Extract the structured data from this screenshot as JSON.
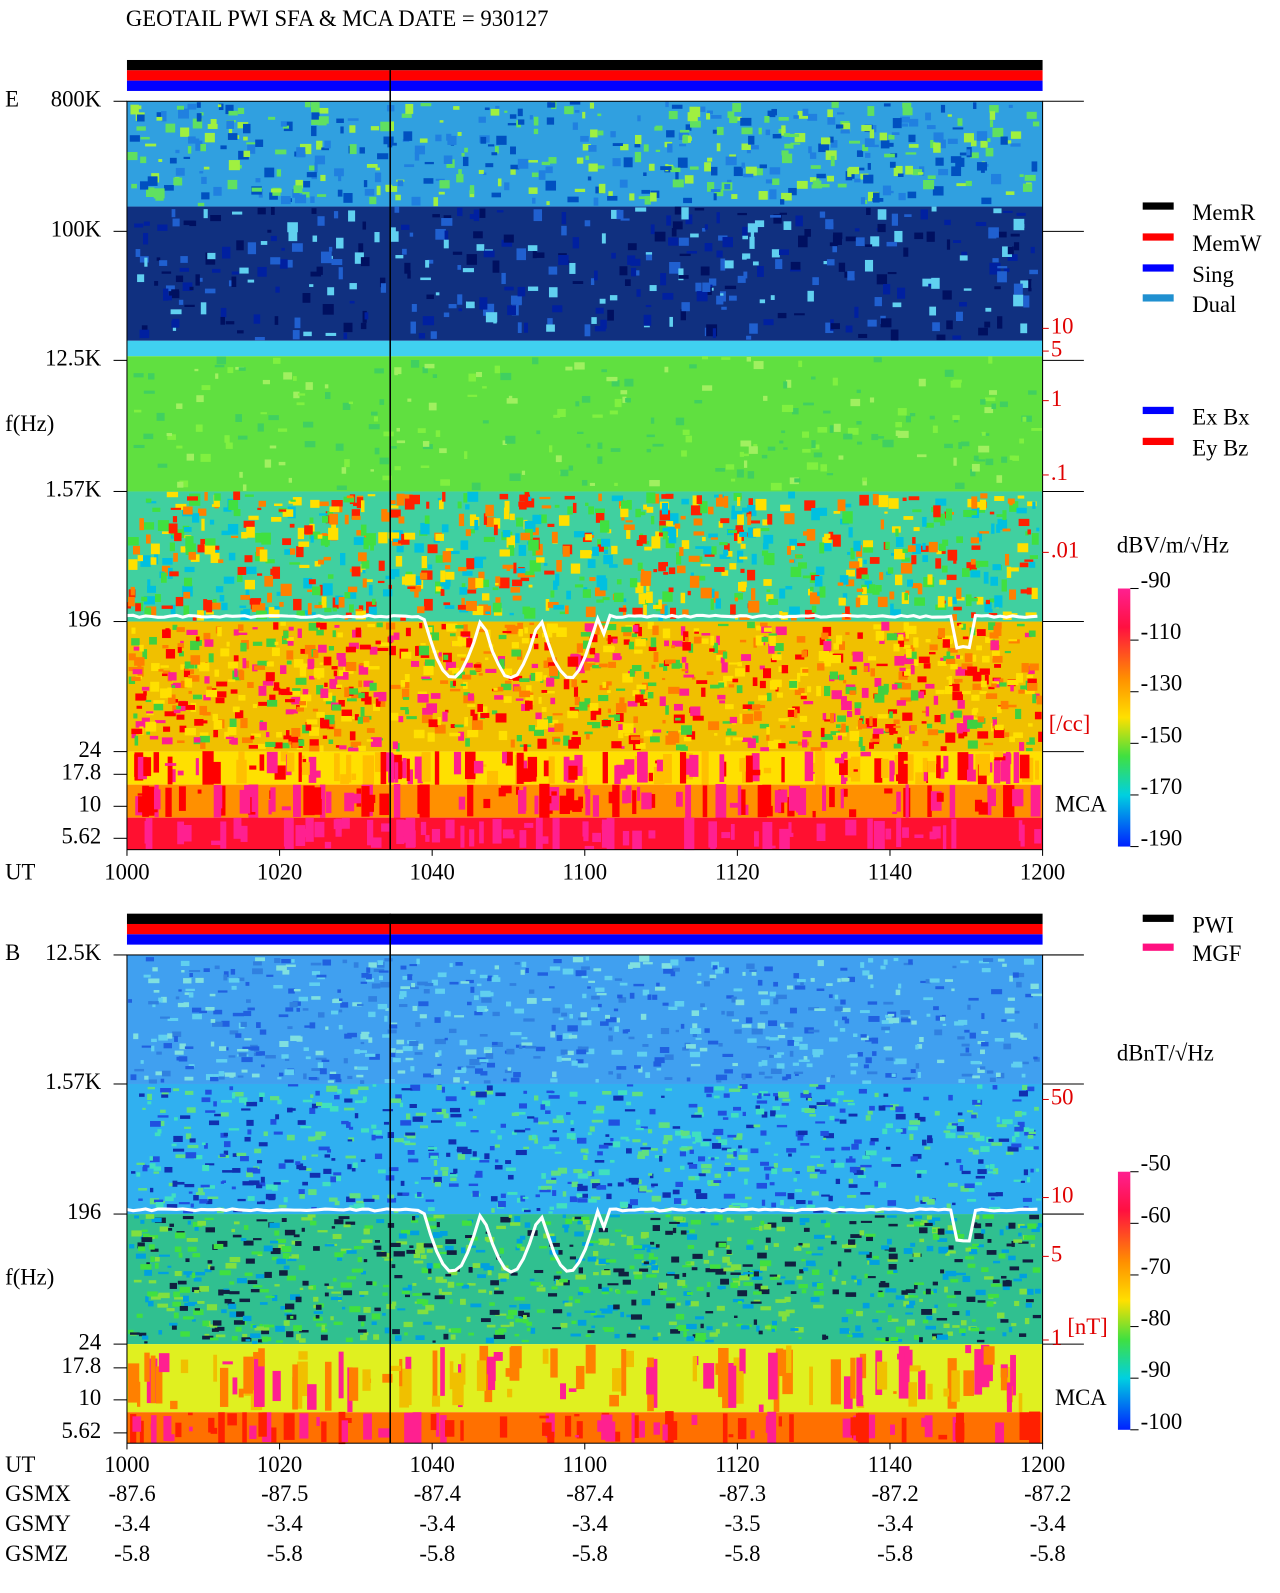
{
  "title": "GEOTAIL  PWI SFA & MCA   DATE = 930127",
  "panel_e": {
    "label": "E",
    "y_axis_label": "f(Hz)",
    "freq_ticks": [
      "800K",
      "100K",
      "12.5K",
      "1.57K",
      "196",
      "24",
      "17.8",
      "10",
      "5.62"
    ],
    "density_ticks": [
      "10",
      "5",
      "1",
      ".1",
      ".01"
    ],
    "density_unit": "[/cc]",
    "mca_label": "MCA",
    "x_label": "UT",
    "x_ticks": [
      "1000",
      "1020",
      "1040",
      "1100",
      "1120",
      "1140",
      "1200"
    ],
    "colorbar_unit": "dBV/m/√Hz",
    "colorbar_ticks": [
      "-90",
      "-110",
      "-130",
      "-150",
      "-170",
      "-190"
    ]
  },
  "legend_memory": [
    "MemR",
    "MemW",
    "Sing",
    "Dual"
  ],
  "legend_antenna": [
    "Ex Bx",
    "Ey Bz"
  ],
  "panel_b": {
    "label": "B",
    "y_axis_label": "f(Hz)",
    "freq_ticks": [
      "12.5K",
      "1.57K",
      "196",
      "24",
      "17.8",
      "10",
      "5.62"
    ],
    "field_ticks": [
      "50",
      "10",
      "5",
      "1"
    ],
    "field_unit": "[nT]",
    "mca_label": "MCA",
    "x_label": "UT",
    "x_ticks": [
      "1000",
      "1020",
      "1040",
      "1100",
      "1120",
      "1140",
      "1200"
    ],
    "colorbar_unit": "dBnT/√Hz",
    "colorbar_ticks": [
      "-50",
      "-60",
      "-70",
      "-80",
      "-90",
      "-100"
    ]
  },
  "legend_source": [
    "PWI",
    "MGF"
  ],
  "orbit": [
    {
      "label": "GSMX",
      "values": [
        "-87.6",
        "-87.5",
        "-87.4",
        "-87.4",
        "-87.3",
        "-87.2",
        "-87.2"
      ]
    },
    {
      "label": "GSMY",
      "values": [
        "-3.4",
        "-3.4",
        "-3.4",
        "-3.4",
        "-3.5",
        "-3.4",
        "-3.4"
      ]
    },
    {
      "label": "GSMZ",
      "values": [
        "-5.8",
        "-5.8",
        "-5.8",
        "-5.8",
        "-5.8",
        "-5.8",
        "-5.8"
      ]
    }
  ]
}
